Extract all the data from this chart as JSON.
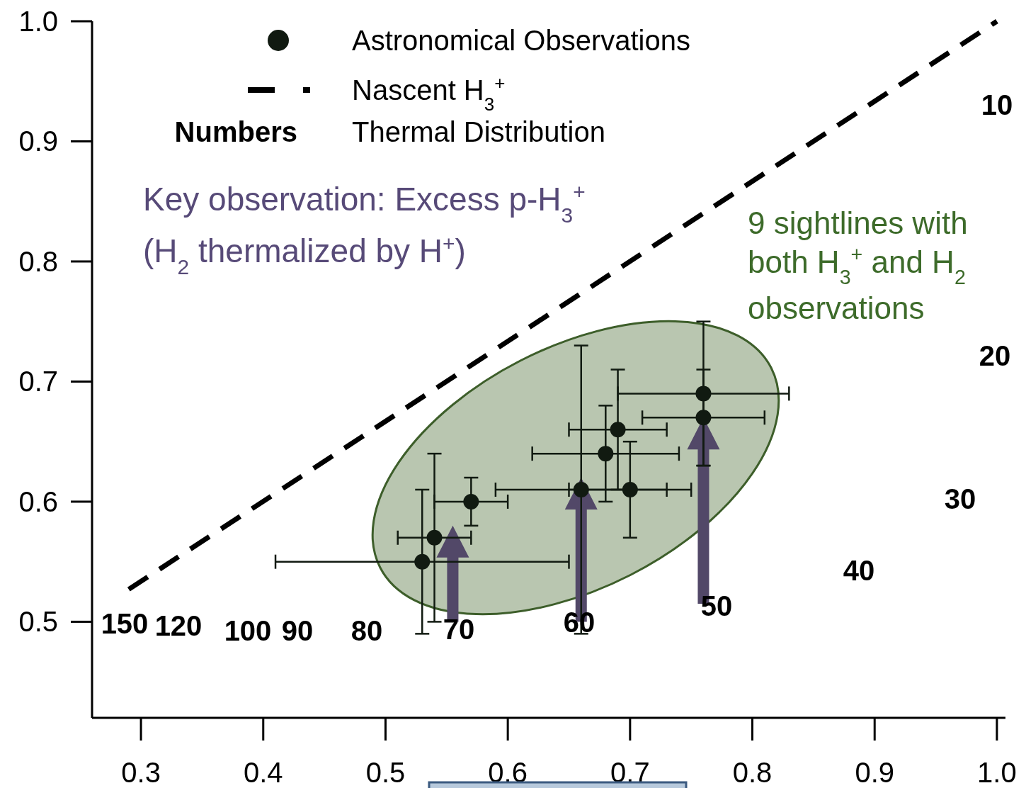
{
  "chart_data": {
    "type": "scatter",
    "xlim": [
      0.26,
      1.007
    ],
    "ylim": [
      0.42,
      1.0
    ],
    "xticks": [
      {
        "value": 0.3,
        "label": "0.3"
      },
      {
        "value": 0.4,
        "label": "0.4"
      },
      {
        "value": 0.5,
        "label": "0.5"
      },
      {
        "value": 0.6,
        "label": "0.6"
      },
      {
        "value": 0.7,
        "label": "0.7"
      },
      {
        "value": 0.8,
        "label": "0.8"
      },
      {
        "value": 0.9,
        "label": "0.9"
      },
      {
        "value": 1.0,
        "label": "1.0"
      }
    ],
    "yticks": [
      {
        "value": 0.5,
        "label": "0.5"
      },
      {
        "value": 0.6,
        "label": "0.6"
      },
      {
        "value": 0.7,
        "label": "0.7"
      },
      {
        "value": 0.8,
        "label": "0.8"
      },
      {
        "value": 0.9,
        "label": "0.9"
      },
      {
        "value": 1.0,
        "label": "1.0"
      }
    ],
    "legend": "top left",
    "series": [
      {
        "name": "Astronomical Observations",
        "marker": "circle",
        "color": "#111a11",
        "x": [
          0.53,
          0.54,
          0.57,
          0.66,
          0.68,
          0.69,
          0.7,
          0.76,
          0.76
        ],
        "values": [
          0.55,
          0.57,
          0.6,
          0.61,
          0.64,
          0.66,
          0.61,
          0.69,
          0.67
        ],
        "xerrors": [
          [
            0.41,
            0.65
          ],
          [
            0.51,
            0.57
          ],
          [
            0.54,
            0.6
          ],
          [
            0.59,
            0.75
          ],
          [
            0.62,
            0.74
          ],
          [
            0.65,
            0.73
          ],
          [
            0.65,
            0.73
          ],
          [
            0.69,
            0.83
          ],
          [
            0.71,
            0.81
          ]
        ],
        "errors": [
          [
            0.49,
            0.61
          ],
          [
            0.5,
            0.64
          ],
          [
            0.58,
            0.62
          ],
          [
            0.49,
            0.73
          ],
          [
            0.6,
            0.68
          ],
          [
            0.61,
            0.71
          ],
          [
            0.57,
            0.65
          ],
          [
            0.63,
            0.75
          ],
          [
            0.63,
            0.71
          ]
        ]
      },
      {
        "name": "Nascent H$_{3}$$^{+}$",
        "type": "line",
        "line_style": "dashed",
        "marker": "none",
        "color": "#000000",
        "x": [
          0.29,
          1.0
        ],
        "values": [
          0.527,
          1.0
        ]
      }
    ],
    "annotations": [
      "Numbers",
      "Thermal Distribution",
      "Key observation: Excess p-H$_{3}$$^{+}$",
      "(H$_{2}$ thermalized by H$^{+}$)",
      "9 sightlines with",
      "both H$_{3}$$^{+}$ and H$_{2}$",
      "observations",
      "10",
      "20",
      "30",
      "40",
      "50",
      "60",
      "70",
      "80",
      "90",
      "100",
      "120",
      "150"
    ]
  }
}
